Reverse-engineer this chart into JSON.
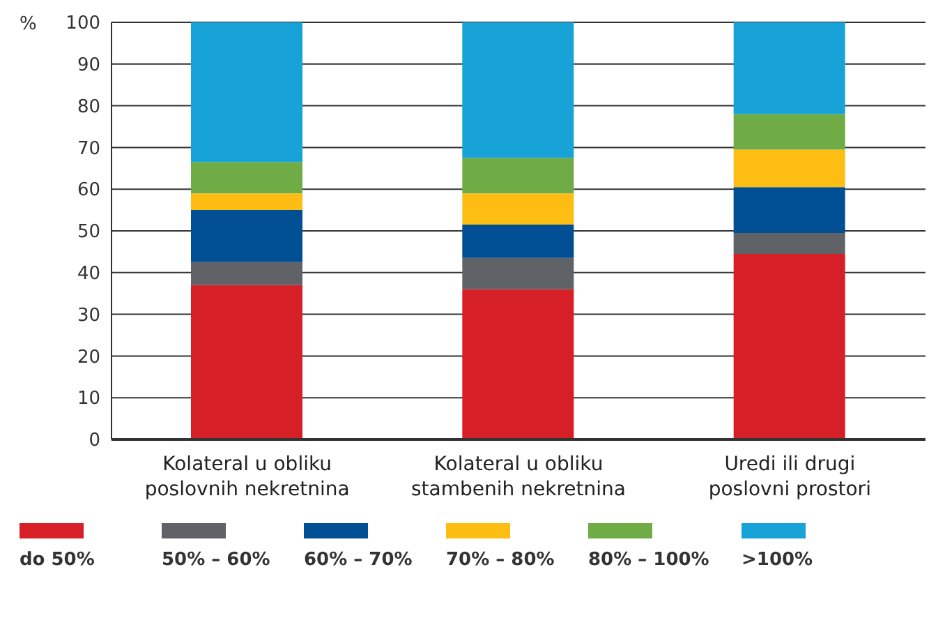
{
  "chart_data": {
    "type": "bar",
    "stacked": true,
    "ylabel": "%",
    "categories": [
      "Kolateral u obliku poslovnih nekretnina",
      "Kolateral u obliku stambenih nekretnina",
      "Uredi ili drugi poslovni prostori"
    ],
    "series": [
      {
        "name": "do 50%",
        "color": "#d71f27",
        "values": [
          37,
          36,
          44.5
        ]
      },
      {
        "name": "50% – 60%",
        "color": "#5f6368",
        "values": [
          5.5,
          7.5,
          5
        ]
      },
      {
        "name": "60% – 70%",
        "color": "#004f95",
        "values": [
          12.5,
          8,
          11
        ]
      },
      {
        "name": "70% – 80%",
        "color": "#fdbd13",
        "values": [
          4,
          7.5,
          9
        ]
      },
      {
        "name": "80% – 100%",
        "color": "#6fac46",
        "values": [
          7.5,
          8.5,
          8.5
        ]
      },
      {
        "name": ">100%",
        "color": "#17a3d7",
        "values": [
          33.5,
          32.5,
          22
        ]
      }
    ],
    "ylim": [
      0,
      100
    ],
    "yticks": [
      0,
      10,
      20,
      30,
      40,
      50,
      60,
      70,
      80,
      90,
      100
    ],
    "grid": "y",
    "legend": "bottom"
  }
}
